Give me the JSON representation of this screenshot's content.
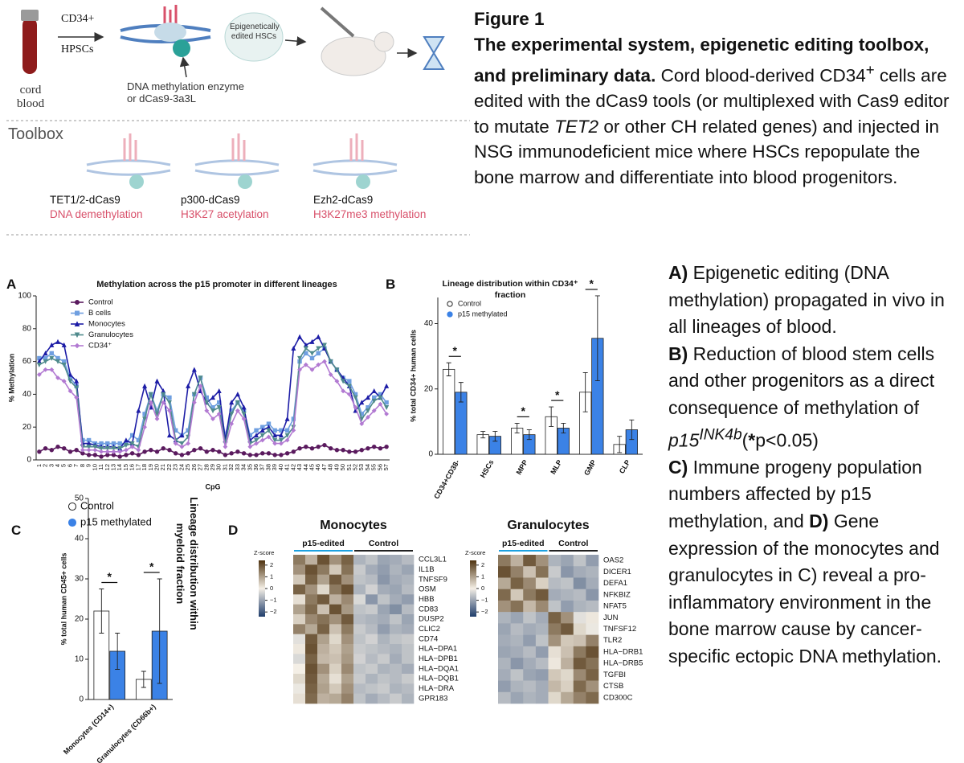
{
  "figure": {
    "diagram": {
      "source": "cord blood",
      "marker_top": "CD34+",
      "marker_bottom": "HPSCs",
      "enzyme": "DNA methylation enzyme or dCas9-3a3L",
      "edited": "Epigenetically edited HSCs",
      "toolbox": "Toolbox",
      "tools": [
        {
          "name": "TET1/2-dCas9",
          "effect": "DNA demethylation"
        },
        {
          "name": "p300-dCas9",
          "effect": "H3K27 acetylation"
        },
        {
          "name": "Ezh2-dCas9",
          "effect": "H3K27me3 methylation"
        }
      ]
    },
    "caption": {
      "label": "Figure 1",
      "title": "The experimental system, epigenetic editing toolbox, and preliminary data.",
      "body": [
        " Cord blood-derived CD34",
        "+",
        " cells are edited with the dCas9 tools (or multiplexed with Cas9 editor to mutate ",
        "TET2",
        " or other CH related genes) and injected in NSG immunodeficient mice where HSCs repopulate the bone marrow and differentiate into blood progenitors."
      ]
    },
    "legend_text": [
      "A)",
      " Epigenetic editing (DNA methylation) propagated in vivo in all lineages of blood.",
      "B)",
      " Reduction of blood stem cells and other progenitors as a direct consequence of methylation of ",
      "p15",
      "INK4b",
      "(",
      "*",
      "p<0.05)",
      "C)",
      " Immune progeny population numbers affected by p15 methylation, and ",
      "D)",
      " Gene expression of the monocytes and granulocytes in C) reveal a pro-inflammatory environment in the bone marrow cause by cancer-specific ectopic DNA methylation."
    ]
  },
  "chart_data": [
    {
      "type": "line",
      "panel": "A",
      "title": "Methylation across the p15 promoter in different lineages",
      "ylabel": "% Methylation",
      "xlabel": "CpG",
      "categories": [
        "1",
        "2",
        "3",
        "4",
        "5",
        "6",
        "7",
        "8",
        "9",
        "10",
        "11",
        "12",
        "13",
        "14",
        "15",
        "16",
        "17",
        "18",
        "19",
        "20",
        "21",
        "22",
        "23",
        "24",
        "25",
        "26",
        "27",
        "28",
        "29",
        "30",
        "31",
        "32",
        "33",
        "34",
        "35",
        "36",
        "37",
        "38",
        "39",
        "40",
        "41",
        "42",
        "43",
        "44",
        "45",
        "46",
        "47",
        "48",
        "49",
        "50",
        "51",
        "52",
        "53",
        "54",
        "55",
        "56",
        "57"
      ],
      "ylim": [
        0,
        100
      ],
      "yticks": [
        0,
        20,
        40,
        60,
        80,
        100
      ],
      "series": [
        {
          "name": "Control",
          "color": "#5a1a5e",
          "marker": "circle",
          "values": [
            5,
            7,
            6,
            8,
            7,
            5,
            6,
            4,
            3,
            3,
            2,
            3,
            3,
            2,
            3,
            4,
            3,
            5,
            6,
            5,
            7,
            6,
            4,
            3,
            4,
            6,
            7,
            5,
            6,
            5,
            3,
            4,
            5,
            4,
            3,
            3,
            4,
            4,
            3,
            3,
            4,
            5,
            7,
            8,
            7,
            8,
            9,
            7,
            6,
            6,
            5,
            5,
            6,
            7,
            8,
            7,
            8
          ]
        },
        {
          "name": "B cells",
          "color": "#6f9fe0",
          "marker": "square",
          "values": [
            62,
            62,
            65,
            62,
            60,
            50,
            45,
            12,
            12,
            10,
            10,
            10,
            10,
            10,
            10,
            15,
            12,
            28,
            40,
            30,
            40,
            38,
            18,
            15,
            18,
            40,
            50,
            38,
            32,
            35,
            15,
            30,
            35,
            30,
            15,
            18,
            20,
            22,
            18,
            18,
            18,
            25,
            60,
            65,
            62,
            65,
            68,
            60,
            55,
            50,
            48,
            40,
            28,
            32,
            38,
            40,
            35
          ]
        },
        {
          "name": "Monocytes",
          "color": "#1c1ca6",
          "marker": "triangle",
          "values": [
            60,
            65,
            70,
            72,
            70,
            52,
            48,
            10,
            10,
            9,
            8,
            8,
            8,
            7,
            12,
            10,
            30,
            45,
            32,
            48,
            42,
            15,
            12,
            15,
            45,
            55,
            42,
            35,
            38,
            42,
            12,
            35,
            40,
            32,
            12,
            15,
            18,
            20,
            15,
            15,
            25,
            68,
            75,
            70,
            72,
            75,
            68,
            60,
            55,
            50,
            45,
            30,
            35,
            38,
            42,
            38,
            45
          ]
        },
        {
          "name": "Granulocytes",
          "color": "#4f8a8c",
          "marker": "triangle-down",
          "values": [
            58,
            60,
            62,
            60,
            58,
            48,
            44,
            8,
            8,
            8,
            7,
            7,
            7,
            7,
            9,
            10,
            8,
            25,
            40,
            28,
            40,
            35,
            12,
            10,
            14,
            40,
            50,
            35,
            30,
            32,
            10,
            28,
            35,
            28,
            10,
            12,
            15,
            18,
            12,
            12,
            15,
            20,
            62,
            68,
            65,
            68,
            70,
            60,
            55,
            48,
            45,
            38,
            25,
            30,
            36,
            38,
            32
          ]
        },
        {
          "name": "CD34⁺",
          "color": "#b27ad2",
          "marker": "diamond",
          "values": [
            52,
            55,
            55,
            50,
            48,
            42,
            38,
            6,
            6,
            6,
            5,
            5,
            5,
            5,
            6,
            8,
            6,
            20,
            35,
            25,
            35,
            30,
            10,
            8,
            10,
            35,
            45,
            30,
            25,
            28,
            8,
            22,
            30,
            25,
            8,
            10,
            12,
            14,
            10,
            10,
            12,
            18,
            55,
            58,
            55,
            58,
            60,
            52,
            48,
            42,
            40,
            32,
            22,
            26,
            30,
            34,
            28
          ]
        }
      ]
    },
    {
      "type": "bar",
      "panel": "B",
      "title": "Lineage distribution within CD34⁺ fraction",
      "ylabel": "% total CD34+ human cells",
      "categories": [
        "CD34+CD38-",
        "HSCs",
        "MPP",
        "MLP",
        "GMP",
        "CLP"
      ],
      "ylim": [
        0,
        48
      ],
      "yticks": [
        0,
        20,
        40
      ],
      "series": [
        {
          "name": "Control",
          "color": "#ffffff",
          "values": [
            26,
            6,
            8,
            11.5,
            19,
            3
          ],
          "errors": [
            2,
            1,
            1.5,
            3,
            6,
            2.5
          ]
        },
        {
          "name": "p15 methylated",
          "color": "#3b82e6",
          "values": [
            19,
            5.5,
            6,
            8,
            35.5,
            7.5
          ],
          "errors": [
            3,
            1.5,
            1.5,
            1.5,
            13,
            3
          ]
        }
      ],
      "annotations": [
        {
          "text": "*",
          "category": "CD34+CD38-"
        },
        {
          "text": "*",
          "category": "MPP"
        },
        {
          "text": "*",
          "category": "MLP"
        },
        {
          "text": "*",
          "category": "GMP"
        }
      ]
    },
    {
      "type": "bar",
      "panel": "C",
      "title": "Lineage distribution within myeloid fraction",
      "ylabel": "% total human CD45+ cells",
      "categories": [
        "Monocytes (CD14+)",
        "Granulocytes (CD66b+)"
      ],
      "ylim": [
        0,
        50
      ],
      "yticks": [
        0,
        10,
        20,
        30,
        40,
        50
      ],
      "series": [
        {
          "name": "Control",
          "color": "#ffffff",
          "values": [
            22,
            5
          ],
          "errors": [
            5.5,
            2
          ]
        },
        {
          "name": "p15 methylated",
          "color": "#3b82e6",
          "values": [
            12,
            17
          ],
          "errors": [
            4.5,
            13
          ]
        }
      ],
      "annotations": [
        {
          "text": "*",
          "category": "Monocytes (CD14+)"
        },
        {
          "text": "*",
          "category": "Granulocytes (CD66b+)"
        }
      ]
    },
    {
      "type": "heatmap",
      "panel": "D",
      "title": "Monocytes",
      "colorbar_label": "Z-score",
      "zlim": [
        -2.4,
        2.4
      ],
      "zticks": [
        2,
        1,
        0,
        {
          "value": -1,
          "label": "−1"
        },
        {
          "value": -2,
          "label": "−2"
        }
      ],
      "colors": {
        "low": "#1f3d6b",
        "mid": "#f4efe6",
        "high": "#4f3310"
      },
      "groups": [
        {
          "label": "p15-edited",
          "color": "#1da1e0"
        },
        {
          "label": "Control",
          "color": "#222222"
        }
      ],
      "column_groups": [
        "p15-edited",
        "p15-edited",
        "p15-edited",
        "p15-edited",
        "p15-edited",
        "Control",
        "Control",
        "Control",
        "Control",
        "Control"
      ],
      "rows": [
        "CCL3L1",
        "IL1B",
        "TNFSF9",
        "OSM",
        "HBB",
        "CD83",
        "DUSP2",
        "CLIC2",
        "CD74",
        "HLA−DPA1",
        "HLA−DPB1",
        "HLA−DQA1",
        "HLA−DQB1",
        "HLA−DRA",
        "GPR183"
      ],
      "matrix": [
        [
          1.5,
          0.8,
          2,
          1.2,
          1.8,
          -0.8,
          -0.6,
          -1,
          -0.9,
          -0.7
        ],
        [
          1.2,
          2,
          1.5,
          0.5,
          1.6,
          -0.5,
          -0.9,
          -1.1,
          -0.8,
          -1
        ],
        [
          0.5,
          1.8,
          1,
          1.9,
          1.2,
          -0.6,
          -0.7,
          -1.2,
          -0.9,
          -0.8
        ],
        [
          1.8,
          1.2,
          0.3,
          1.5,
          2,
          -0.8,
          -0.4,
          -0.9,
          -1,
          -0.7
        ],
        [
          0.2,
          1.5,
          1.9,
          0.8,
          1.3,
          -0.3,
          -1.2,
          -0.6,
          -0.9,
          -1.1
        ],
        [
          1,
          1.7,
          0.6,
          2,
          1.1,
          -0.6,
          -0.5,
          -1,
          -1.3,
          -0.7
        ],
        [
          0.4,
          1.3,
          1.6,
          1.2,
          1.9,
          -0.7,
          -0.8,
          -0.9,
          -0.6,
          -1
        ],
        [
          1.4,
          0.9,
          1.8,
          0.6,
          1.5,
          -0.5,
          -0.7,
          -1.1,
          -0.8,
          -0.9
        ],
        [
          -0.2,
          1.9,
          1,
          0.3,
          1.2,
          -0.6,
          -0.4,
          -0.8,
          -0.6,
          -0.5
        ],
        [
          0.1,
          2,
          0.8,
          0.5,
          1,
          -0.5,
          -0.6,
          -0.7,
          -0.8,
          -0.6
        ],
        [
          -0.3,
          1.8,
          0.7,
          0.6,
          1.1,
          -0.4,
          -0.7,
          -0.5,
          -0.9,
          -0.6
        ],
        [
          0,
          2,
          1.2,
          0.4,
          1.3,
          -0.6,
          -0.5,
          -0.8,
          -0.7,
          -0.9
        ],
        [
          0.3,
          1.9,
          0.9,
          0.2,
          1,
          -0.5,
          -0.8,
          -0.6,
          -0.7,
          -0.5
        ],
        [
          -0.1,
          1.8,
          1,
          0.5,
          1.2,
          -0.7,
          -0.6,
          -0.5,
          -0.8,
          -0.7
        ],
        [
          0.2,
          1.7,
          0.8,
          0.9,
          1.4,
          -0.6,
          -0.9,
          -0.7,
          -0.5,
          -0.8
        ]
      ]
    },
    {
      "type": "heatmap",
      "title": "Granulocytes",
      "colorbar_label": "Z-score",
      "zlim": [
        -2.4,
        2.4
      ],
      "zticks": [
        2,
        1,
        0,
        {
          "value": -1,
          "label": "−1"
        },
        {
          "value": -2,
          "label": "−2"
        }
      ],
      "colors": {
        "low": "#1f3d6b",
        "mid": "#f4efe6",
        "high": "#4f3310"
      },
      "groups": [
        {
          "label": "p15-edited",
          "color": "#1da1e0"
        },
        {
          "label": "Control",
          "color": "#222222"
        }
      ],
      "column_groups": [
        "p15-edited",
        "p15-edited",
        "p15-edited",
        "p15-edited",
        "Control",
        "Control",
        "Control",
        "Control"
      ],
      "rows": [
        "OAS2",
        "DICER1",
        "DEFA1",
        "NFKBIZ",
        "NFAT5",
        "JUN",
        "TNFSF12",
        "TLR2",
        "HLA−DRB1",
        "HLA−DRB5",
        "TGFBI",
        "CTSB",
        "CD300C"
      ],
      "matrix": [
        [
          1.5,
          0.8,
          1.9,
          1.2,
          -0.8,
          -1,
          -0.6,
          -1.1
        ],
        [
          2,
          1.4,
          0.6,
          1.6,
          -0.5,
          -1.2,
          -0.9,
          -0.8
        ],
        [
          0.9,
          1.8,
          1.3,
          0.4,
          -0.7,
          -0.6,
          -1.3,
          -0.9
        ],
        [
          1.7,
          0.5,
          1.5,
          1.9,
          -0.9,
          -0.8,
          -0.7,
          -1.2
        ],
        [
          1.2,
          1.6,
          0.7,
          1.3,
          -0.6,
          -1.1,
          -0.8,
          -0.7
        ],
        [
          -0.8,
          -1,
          -0.6,
          -0.9,
          1.8,
          1.2,
          -0.2,
          0.1
        ],
        [
          -1,
          -0.7,
          -0.9,
          -0.8,
          1.5,
          1.9,
          0.3,
          -0.1
        ],
        [
          -0.9,
          -0.8,
          -1.1,
          -0.6,
          1.2,
          0.5,
          0.6,
          1.4
        ],
        [
          -1,
          -0.9,
          -0.7,
          -1.1,
          0.2,
          0.6,
          1.5,
          2
        ],
        [
          -0.8,
          -1.2,
          -0.9,
          -0.7,
          0.1,
          0.8,
          1.9,
          1.6
        ],
        [
          -0.9,
          -0.6,
          -1,
          -1.1,
          0.5,
          0.3,
          1.3,
          1.8
        ],
        [
          -1.1,
          -0.8,
          -0.7,
          -0.9,
          0.7,
          0.4,
          1.7,
          1.2
        ],
        [
          -0.7,
          -1,
          -0.8,
          -0.9,
          0.3,
          0.9,
          1.4,
          1.7
        ]
      ]
    }
  ]
}
